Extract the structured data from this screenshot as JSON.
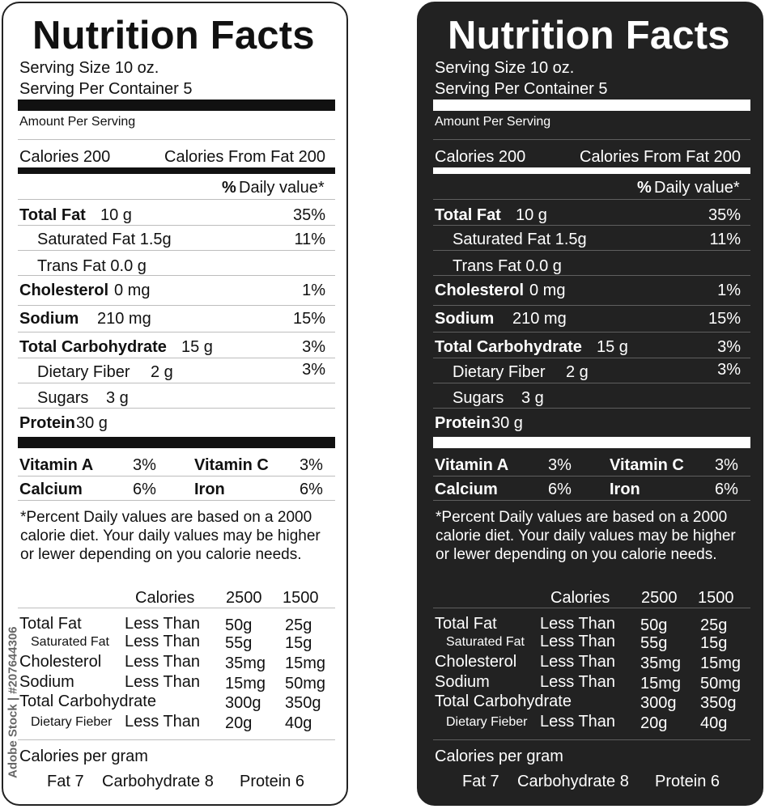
{
  "label": {
    "title": "Nutrition Facts",
    "serving_size": "Serving Size 10 oz.",
    "servings_per_container": "Serving Per Container 5",
    "amount_per_serving": "Amount Per Serving",
    "calories": "Calories 200",
    "calories_from_fat": "Calories From Fat 200",
    "dv_pct": "%",
    "dv_text": "Daily value*",
    "nutrients": [
      {
        "name": "Total Fat",
        "amount": "10 g",
        "dv": "35%"
      },
      {
        "name": "Saturated Fat 1.5g",
        "amount": "",
        "dv": "11%"
      },
      {
        "name": "Trans Fat 0.0 g",
        "amount": "",
        "dv": ""
      },
      {
        "name": "Cholesterol",
        "amount": "0 mg",
        "dv": "1%"
      },
      {
        "name": "Sodium",
        "amount": "210 mg",
        "dv": "15%"
      },
      {
        "name": "Total Carbohydrate",
        "amount": "15 g",
        "dv": "3%"
      },
      {
        "name": "Dietary Fiber",
        "amount": "2 g",
        "dv": "3%"
      },
      {
        "name": "Sugars",
        "amount": "3 g",
        "dv": ""
      },
      {
        "name": "Protein",
        "amount": "30 g",
        "dv": ""
      }
    ],
    "vitamins": [
      {
        "name": "Vitamin A",
        "value": "3%"
      },
      {
        "name": "Vitamin C",
        "value": "3%"
      },
      {
        "name": "Calcium",
        "value": "6%"
      },
      {
        "name": "Iron",
        "value": "6%"
      }
    ],
    "footnote": "*Percent Daily values are based on a 2000 calorie diet. Your daily values may be higher or lewer depending on you calorie needs.",
    "dv_table": {
      "headers": [
        "Calories",
        "2500",
        "1500"
      ],
      "rows": [
        {
          "name": "Total Fat",
          "qual": "Less Than",
          "v1": "50g",
          "v2": "25g"
        },
        {
          "name": "Saturated Fat",
          "qual": "Less Than",
          "v1": "55g",
          "v2": "15g"
        },
        {
          "name": "Cholesterol",
          "qual": "Less Than",
          "v1": "35mg",
          "v2": "15mg"
        },
        {
          "name": "Sodium",
          "qual": "Less Than",
          "v1": "15mg",
          "v2": "50mg"
        },
        {
          "name": "Total Carbohydrate",
          "qual": "",
          "v1": "300g",
          "v2": "350g"
        },
        {
          "name": "Dietary Fieber",
          "qual": "Less Than",
          "v1": "20g",
          "v2": "40g"
        }
      ]
    },
    "calories_per_gram": "Calories per gram",
    "per_gram": [
      "Fat 7",
      "Carbohydrate 8",
      "Protein 6"
    ]
  },
  "watermark": "Adobe Stock | #207644306",
  "colors": {
    "dark_panel": "#222222",
    "light_panel": "#ffffff"
  }
}
